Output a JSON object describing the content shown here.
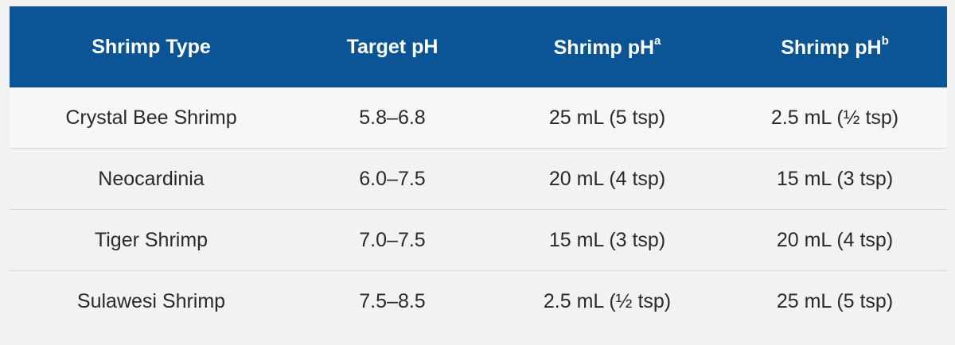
{
  "table": {
    "headers": [
      {
        "text": "Shrimp Type"
      },
      {
        "text": "Target pH"
      },
      {
        "text": "Shrimp pH",
        "sup": "a"
      },
      {
        "text": "Shrimp pH",
        "sup": "b"
      }
    ],
    "rows": [
      [
        "Crystal Bee Shrimp",
        "5.8–6.8",
        "25 mL (5 tsp)",
        "2.5 mL (½ tsp)"
      ],
      [
        "Neocardinia",
        "6.0–7.5",
        "20 mL (4 tsp)",
        "15 mL (3 tsp)"
      ],
      [
        "Tiger Shrimp",
        "7.0–7.5",
        "15 mL (3 tsp)",
        "20 mL (4 tsp)"
      ],
      [
        "Sulawesi Shrimp",
        "7.5–8.5",
        "2.5 mL (½ tsp)",
        "25 mL (5 tsp)"
      ]
    ]
  }
}
